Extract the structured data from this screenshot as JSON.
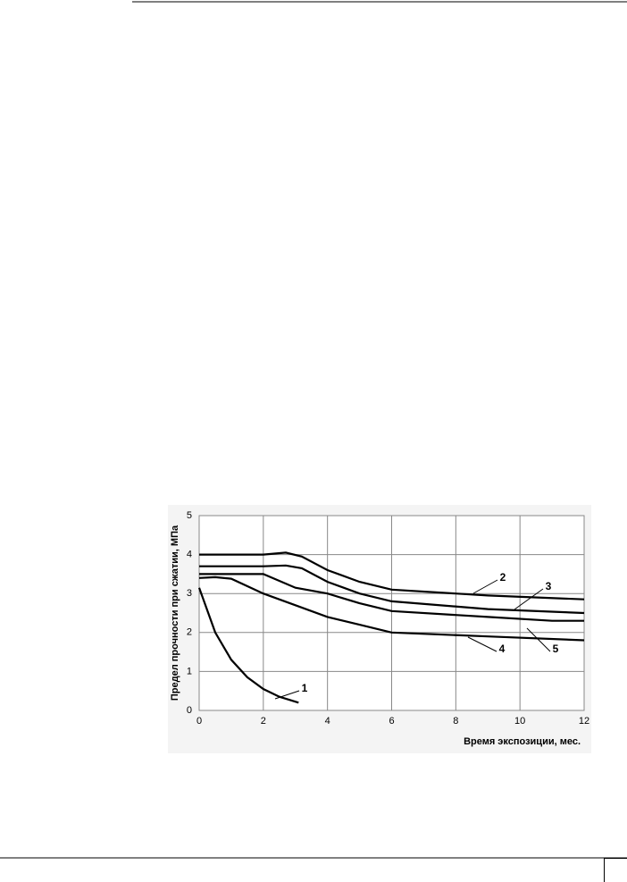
{
  "chart_data": {
    "type": "line",
    "y_label": "Предел прочности при сжатии, МПа",
    "x_label": "Время экспозиции, мес.",
    "xlim": [
      0,
      12
    ],
    "xticks": [
      0,
      2,
      4,
      6,
      8,
      10,
      12
    ],
    "ylim": [
      0,
      5
    ],
    "yticks": [
      0,
      1,
      2,
      3,
      4,
      5
    ],
    "grid": true,
    "series": [
      {
        "name": "1",
        "color": "#000000",
        "x": [
          0,
          0.5,
          1,
          1.5,
          2,
          2.5,
          3.1
        ],
        "values": [
          3.15,
          2.0,
          1.3,
          0.85,
          0.55,
          0.35,
          0.2
        ]
      },
      {
        "name": "2",
        "color": "#000000",
        "x": [
          0,
          2,
          2.7,
          3.2,
          4,
          5,
          6,
          9,
          12
        ],
        "values": [
          4.0,
          4.0,
          4.05,
          3.95,
          3.6,
          3.3,
          3.1,
          2.95,
          2.85
        ]
      },
      {
        "name": "3",
        "color": "#000000",
        "x": [
          0,
          2,
          2.7,
          3.2,
          4,
          5,
          6,
          9,
          12
        ],
        "values": [
          3.7,
          3.7,
          3.72,
          3.65,
          3.3,
          3.0,
          2.8,
          2.6,
          2.5
        ]
      },
      {
        "name": "4",
        "color": "#000000",
        "x": [
          0,
          0.5,
          1,
          2,
          3,
          4,
          5,
          6,
          9,
          12
        ],
        "values": [
          3.4,
          3.42,
          3.38,
          3.0,
          2.7,
          2.4,
          2.2,
          2.0,
          1.9,
          1.8
        ]
      },
      {
        "name": "5",
        "color": "#000000",
        "x": [
          0,
          2,
          3,
          4,
          5,
          6,
          9,
          11,
          12
        ],
        "values": [
          3.5,
          3.5,
          3.15,
          3.0,
          2.75,
          2.55,
          2.4,
          2.3,
          2.3
        ]
      }
    ]
  }
}
